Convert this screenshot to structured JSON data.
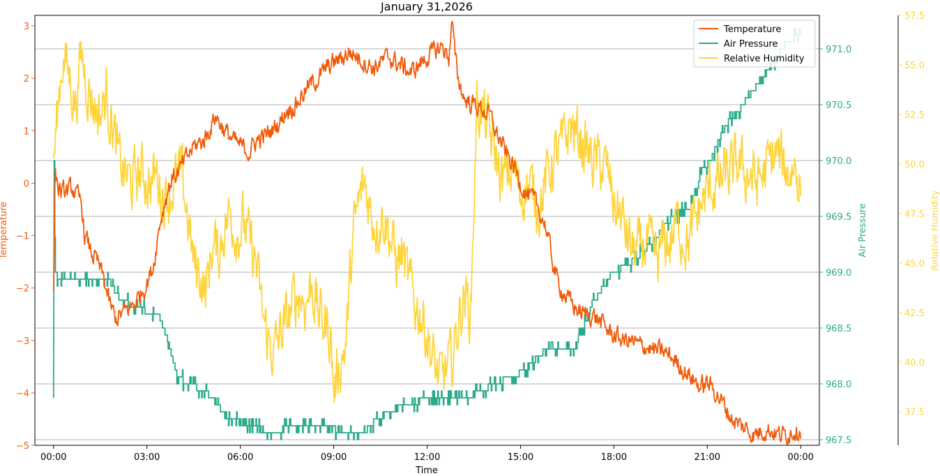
{
  "chart_data": {
    "type": "line",
    "title": "January 31,2026",
    "xlabel": "Time",
    "x_ticks": [
      "00:00",
      "03:00",
      "06:00",
      "09:00",
      "12:00",
      "15:00",
      "18:00",
      "21:00",
      "00:00"
    ],
    "x_range_hours": [
      -0.6,
      24.6
    ],
    "grid": "horizontal lines at right-axis ticks",
    "legend_position": "top-right",
    "colors": {
      "temperature": "#f05a0a",
      "pressure": "#2aaa8a",
      "humidity": "#ffd43a",
      "grid": "#b0b0b0",
      "axis": "#000000"
    },
    "axes": {
      "temperature": {
        "label": "Temperature",
        "position": "left",
        "range": [
          -5,
          3.2
        ],
        "ticks": [
          -5,
          -4,
          -3,
          -2,
          -1,
          0,
          1,
          2,
          3
        ],
        "tick_labels": [
          "−5",
          "−4",
          "−3",
          "−2",
          "−1",
          "0",
          "1",
          "2",
          "3"
        ]
      },
      "pressure": {
        "label": "Air Pressure",
        "position": "right",
        "range": [
          967.45,
          971.3
        ],
        "ticks": [
          967.5,
          968.0,
          968.5,
          969.0,
          969.5,
          970.0,
          970.5,
          971.0
        ],
        "tick_labels": [
          "967.5",
          "968.0",
          "968.5",
          "969.0",
          "969.5",
          "970.0",
          "970.5",
          "971.0"
        ]
      },
      "humidity": {
        "label": "Relative Humidity",
        "position": "right-outer",
        "range": [
          35.8,
          57.5
        ],
        "ticks": [
          37.5,
          40.0,
          42.5,
          45.0,
          47.5,
          50.0,
          52.5,
          55.0,
          57.5
        ],
        "tick_labels": [
          "37.5",
          "40.0",
          "42.5",
          "45.0",
          "47.5",
          "50.0",
          "52.5",
          "55.0",
          "57.5"
        ]
      }
    },
    "series": [
      {
        "name": "Temperature",
        "axis": "temperature",
        "color": "#f05a0a",
        "x": [
          0.0,
          0.05,
          0.1,
          0.15,
          0.3,
          0.6,
          0.9,
          1.0,
          1.2,
          1.4,
          1.6,
          1.8,
          2.0,
          2.2,
          2.4,
          2.6,
          2.8,
          3.0,
          3.2,
          3.4,
          3.6,
          3.8,
          4.0,
          4.2,
          4.5,
          4.8,
          5.0,
          5.2,
          5.5,
          5.8,
          6.0,
          6.3,
          6.5,
          6.8,
          7.0,
          7.3,
          7.5,
          7.8,
          8.0,
          8.3,
          8.5,
          8.8,
          9.0,
          9.3,
          9.5,
          9.8,
          10.0,
          10.3,
          10.5,
          10.8,
          11.0,
          11.3,
          11.5,
          11.8,
          12.0,
          12.2,
          12.5,
          12.7,
          12.8,
          12.9,
          13.0,
          13.2,
          13.5,
          13.8,
          14.0,
          14.2,
          14.5,
          14.8,
          15.0,
          15.2,
          15.5,
          15.8,
          16.0,
          16.2,
          16.5,
          16.8,
          17.0,
          17.3,
          17.5,
          17.8,
          18.0,
          18.3,
          18.5,
          18.8,
          19.0,
          19.3,
          19.5,
          19.8,
          20.0,
          20.3,
          20.5,
          20.8,
          21.0,
          21.3,
          21.5,
          21.8,
          22.0,
          22.3,
          22.5,
          22.8,
          23.0,
          23.3,
          23.5,
          23.8,
          24.0
        ],
        "values": [
          -2.2,
          0.3,
          0.1,
          -0.1,
          -0.2,
          -0.1,
          -0.4,
          -1.0,
          -1.3,
          -1.5,
          -1.8,
          -2.3,
          -2.6,
          -2.5,
          -2.4,
          -2.3,
          -2.1,
          -1.9,
          -1.6,
          -0.8,
          -0.3,
          0.1,
          0.2,
          0.4,
          0.7,
          0.8,
          1.0,
          1.3,
          1.0,
          0.8,
          0.7,
          0.6,
          0.8,
          0.9,
          1.0,
          1.2,
          1.4,
          1.5,
          1.7,
          1.9,
          2.0,
          2.2,
          2.3,
          2.4,
          2.5,
          2.4,
          2.3,
          2.2,
          2.3,
          2.4,
          2.3,
          2.2,
          2.1,
          2.3,
          2.4,
          2.5,
          2.6,
          2.4,
          3.1,
          2.4,
          2.0,
          1.6,
          1.5,
          1.4,
          1.3,
          1.0,
          0.6,
          0.3,
          0.0,
          -0.2,
          -0.4,
          -0.8,
          -1.4,
          -1.9,
          -2.2,
          -2.4,
          -2.5,
          -2.5,
          -2.6,
          -2.8,
          -2.9,
          -3.0,
          -3.0,
          -3.1,
          -3.1,
          -3.2,
          -3.2,
          -3.3,
          -3.4,
          -3.6,
          -3.7,
          -3.9,
          -3.8,
          -4.0,
          -4.2,
          -4.5,
          -4.6,
          -4.7,
          -4.8,
          -4.7,
          -4.7,
          -4.8,
          -4.8,
          -4.7,
          -4.7
        ],
        "noise": 0.15
      },
      {
        "name": "Air Pressure",
        "axis": "pressure",
        "color": "#2aaa8a",
        "x": [
          0.0,
          0.02,
          0.05,
          0.15,
          0.8,
          1.2,
          1.8,
          2.0,
          2.5,
          3.0,
          3.4,
          3.7,
          4.0,
          4.4,
          4.7,
          5.0,
          5.3,
          5.6,
          6.0,
          6.3,
          6.6,
          7.0,
          7.4,
          7.8,
          8.1,
          8.4,
          8.7,
          9.0,
          9.4,
          9.8,
          10.1,
          10.4,
          10.8,
          11.2,
          11.5,
          11.8,
          12.0,
          12.3,
          12.6,
          13.0,
          13.4,
          13.8,
          14.2,
          14.6,
          15.0,
          15.4,
          15.8,
          16.0,
          16.3,
          16.7,
          17.0,
          17.3,
          17.6,
          18.0,
          18.3,
          18.6,
          19.0,
          19.3,
          19.6,
          19.9,
          20.2,
          20.5,
          20.8,
          21.1,
          21.4,
          21.7,
          22.0,
          22.4,
          22.8,
          23.2,
          23.5,
          23.8,
          24.0
        ],
        "values": [
          967.9,
          970.0,
          969.0,
          968.95,
          968.95,
          968.95,
          968.95,
          968.8,
          968.7,
          968.65,
          968.6,
          968.35,
          968.05,
          968.0,
          967.95,
          967.9,
          967.8,
          967.7,
          967.65,
          967.65,
          967.6,
          967.55,
          967.6,
          967.65,
          967.65,
          967.65,
          967.65,
          967.6,
          967.55,
          967.55,
          967.6,
          967.7,
          967.75,
          967.8,
          967.8,
          967.85,
          967.85,
          967.9,
          967.9,
          967.9,
          967.9,
          967.95,
          968.0,
          968.05,
          968.1,
          968.2,
          968.3,
          968.35,
          968.3,
          968.3,
          968.5,
          968.7,
          968.85,
          969.0,
          969.05,
          969.1,
          969.2,
          969.3,
          969.4,
          969.5,
          969.55,
          969.6,
          969.9,
          970.0,
          970.2,
          970.35,
          970.45,
          970.6,
          970.75,
          970.9,
          971.05,
          971.1,
          971.1
        ],
        "noise": 0.03
      },
      {
        "name": "Relative Humidity",
        "axis": "humidity",
        "color": "#ffd43a",
        "x": [
          0.0,
          0.1,
          0.2,
          0.3,
          0.5,
          0.7,
          0.9,
          1.1,
          1.3,
          1.5,
          1.7,
          1.9,
          2.1,
          2.3,
          2.5,
          2.7,
          2.9,
          3.1,
          3.3,
          3.5,
          3.7,
          3.9,
          4.1,
          4.3,
          4.5,
          4.7,
          4.9,
          5.1,
          5.3,
          5.5,
          5.7,
          5.9,
          6.1,
          6.3,
          6.5,
          6.7,
          6.9,
          7.1,
          7.3,
          7.5,
          7.7,
          7.9,
          8.1,
          8.3,
          8.5,
          8.7,
          8.9,
          9.0,
          9.2,
          9.4,
          9.6,
          9.8,
          10.0,
          10.2,
          10.4,
          10.6,
          10.8,
          11.0,
          11.2,
          11.4,
          11.6,
          11.8,
          12.0,
          12.2,
          12.4,
          12.6,
          12.8,
          13.0,
          13.2,
          13.4,
          13.6,
          13.8,
          14.0,
          14.2,
          14.4,
          14.6,
          14.8,
          15.0,
          15.2,
          15.4,
          15.6,
          15.8,
          16.0,
          16.2,
          16.4,
          16.6,
          16.8,
          17.0,
          17.2,
          17.4,
          17.6,
          17.8,
          18.0,
          18.2,
          18.4,
          18.6,
          18.8,
          19.0,
          19.2,
          19.4,
          19.6,
          19.8,
          20.0,
          20.2,
          20.4,
          20.6,
          20.8,
          21.0,
          21.2,
          21.4,
          21.6,
          21.8,
          22.0,
          22.2,
          22.4,
          22.6,
          22.8,
          23.0,
          23.2,
          23.4,
          23.6,
          23.8,
          24.0
        ],
        "values": [
          50.0,
          52.0,
          54.0,
          55.5,
          54.5,
          53.0,
          55.5,
          54.0,
          53.0,
          52.5,
          53.5,
          52.0,
          50.0,
          49.5,
          49.0,
          49.5,
          49.5,
          49.0,
          49.5,
          48.5,
          48.5,
          49.0,
          49.5,
          47.5,
          45.0,
          44.5,
          43.5,
          46.0,
          45.5,
          47.0,
          47.5,
          46.5,
          47.0,
          46.0,
          45.0,
          42.5,
          41.0,
          40.5,
          41.5,
          42.0,
          43.0,
          43.5,
          43.0,
          44.0,
          42.5,
          42.0,
          41.5,
          38.5,
          40.0,
          41.0,
          46.0,
          48.0,
          49.0,
          47.5,
          47.0,
          47.5,
          46.5,
          45.0,
          45.5,
          44.0,
          43.0,
          42.5,
          41.5,
          40.0,
          39.0,
          39.5,
          40.0,
          42.0,
          43.5,
          42.5,
          53.0,
          52.5,
          51.5,
          50.5,
          49.0,
          49.5,
          49.5,
          48.5,
          49.0,
          48.5,
          48.0,
          49.0,
          50.0,
          50.5,
          51.0,
          52.0,
          51.5,
          51.0,
          50.5,
          50.0,
          50.0,
          49.5,
          48.0,
          47.5,
          46.5,
          45.5,
          45.5,
          46.0,
          45.5,
          45.0,
          46.0,
          46.0,
          47.0,
          46.5,
          46.0,
          47.0,
          48.0,
          48.5,
          49.0,
          49.0,
          49.5,
          49.5,
          50.0,
          49.5,
          49.5,
          49.0,
          49.5,
          50.0,
          50.5,
          50.0,
          49.5,
          50.0,
          49.0
        ],
        "noise": 1.2
      }
    ]
  }
}
